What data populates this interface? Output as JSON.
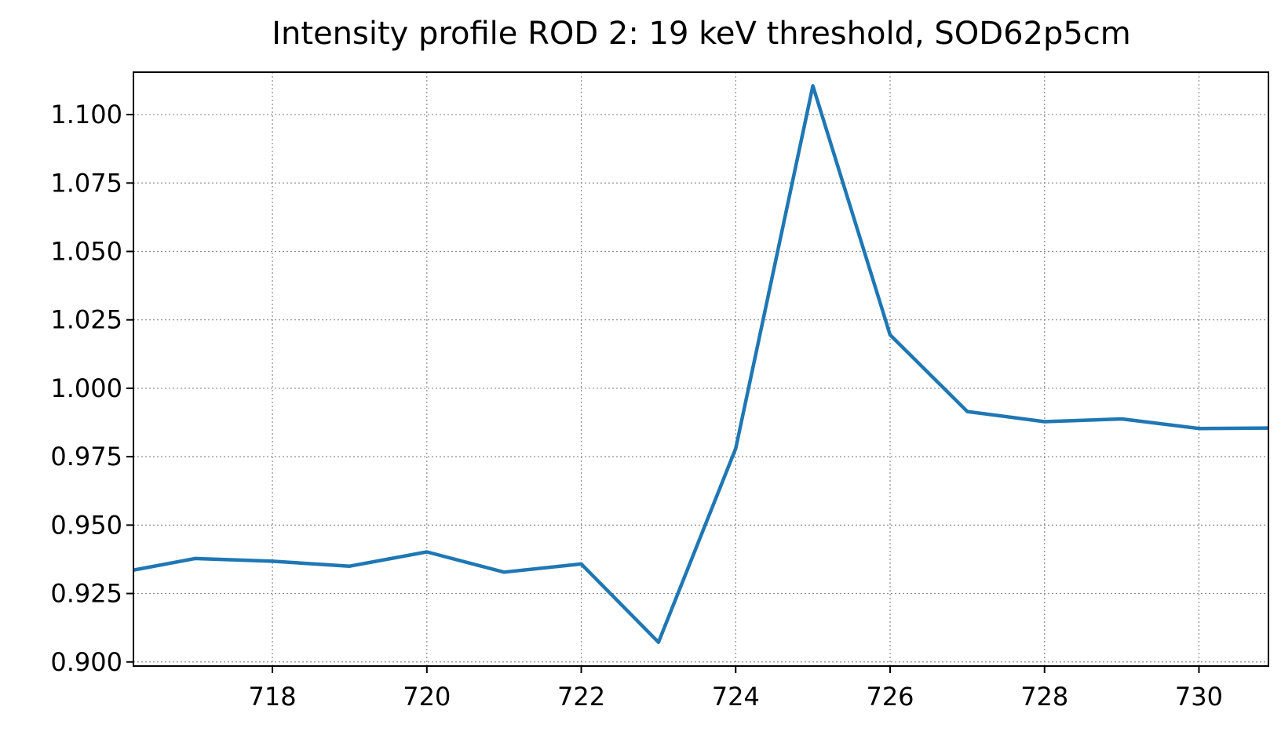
{
  "chart_data": {
    "type": "line",
    "title": "Intensity profile ROD 2: 19 keV threshold, SOD62p5cm",
    "xlabel": "",
    "ylabel": "",
    "xlim": [
      716.2,
      730.9
    ],
    "ylim": [
      0.8985,
      1.1155
    ],
    "xticks": [
      718,
      720,
      722,
      724,
      726,
      728,
      730
    ],
    "yticks": [
      0.9,
      0.925,
      0.95,
      0.975,
      1.0,
      1.025,
      1.05,
      1.075,
      1.1
    ],
    "ytick_labels": [
      "0.900",
      "0.925",
      "0.950",
      "0.975",
      "1.000",
      "1.025",
      "1.050",
      "1.075",
      "1.100"
    ],
    "grid": true,
    "series": [
      {
        "color": "#1f77b4",
        "x": [
          716,
          717,
          718,
          719,
          720,
          721,
          722,
          723,
          724,
          725,
          726,
          727,
          728,
          729,
          730,
          731
        ],
        "y": [
          0.9325,
          0.9378,
          0.9368,
          0.935,
          0.9402,
          0.9328,
          0.9358,
          0.9072,
          0.978,
          1.1105,
          1.0195,
          0.9915,
          0.9878,
          0.9888,
          0.9853,
          0.9855
        ]
      }
    ]
  }
}
